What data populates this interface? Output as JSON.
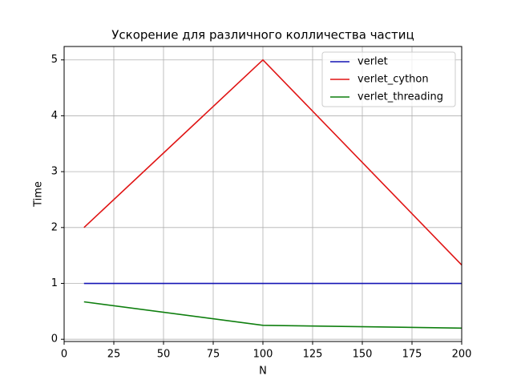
{
  "chart_data": {
    "type": "line",
    "title": "Ускорение для различного колличества частиц",
    "x_label": "N",
    "y_label": "Time",
    "x": [
      10,
      100,
      200
    ],
    "series": [
      {
        "name": "verlet",
        "color": "#1414b4",
        "values": [
          1,
          1,
          1
        ]
      },
      {
        "name": "verlet_cython",
        "color": "#e01414",
        "values": [
          2,
          5,
          1.33
        ]
      },
      {
        "name": "verlet_threading",
        "color": "#0f7f0f",
        "values": [
          0.67,
          0.25,
          0.2
        ]
      }
    ],
    "xlim": [
      0,
      200
    ],
    "xticks": [
      0,
      25,
      50,
      75,
      100,
      125,
      150,
      175,
      200
    ],
    "ylim": [
      -0.04,
      5.24
    ],
    "yticks": [
      0,
      1,
      2,
      3,
      4,
      5
    ],
    "grid": true,
    "legend": "upper-right"
  }
}
